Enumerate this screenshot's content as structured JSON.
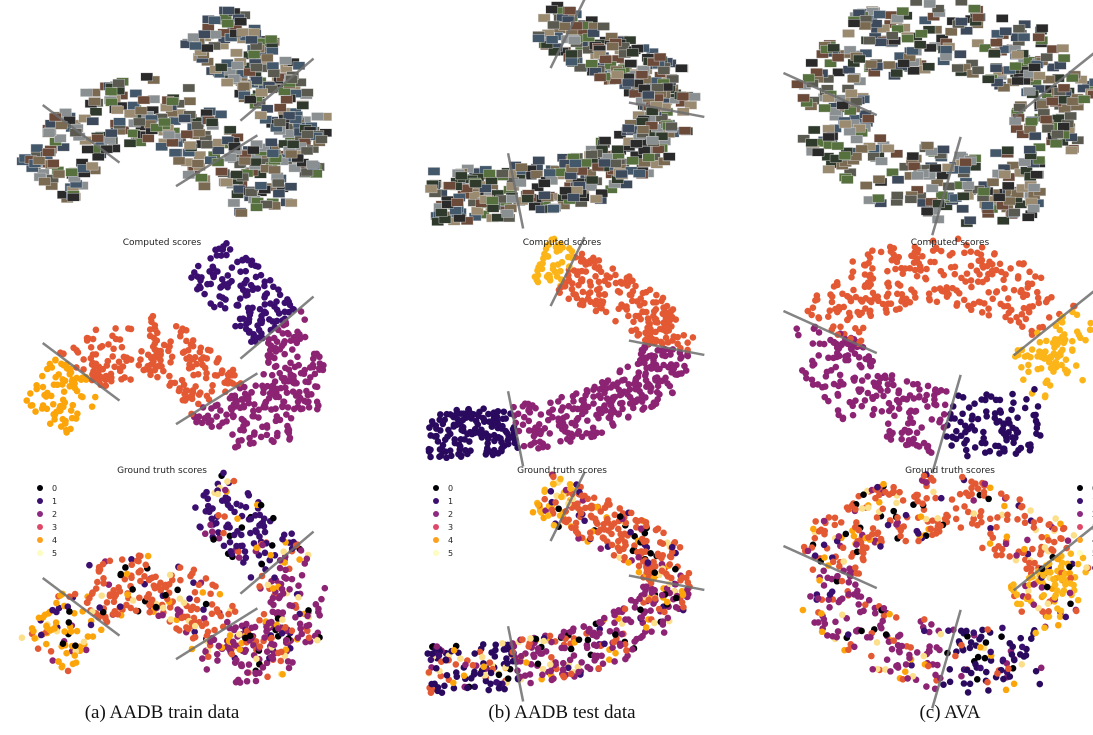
{
  "panels": [
    {
      "caption": "(a) AADB train data",
      "computed_title": "Computed scores",
      "ground_truth_title": "Ground truth scores"
    },
    {
      "caption": "(b) AADB test data",
      "computed_title": "Computed scores",
      "ground_truth_title": "Ground truth scores"
    },
    {
      "caption": "(c) AVA",
      "computed_title": "Computed scores",
      "ground_truth_title": "Ground truth scores"
    }
  ],
  "legend": {
    "labels": [
      "0",
      "1",
      "2",
      "3",
      "4",
      "5"
    ],
    "colors": [
      "#000004",
      "#3b0f70",
      "#8c2981",
      "#de4968",
      "#fe9f1d",
      "#fcfdbf"
    ]
  }
}
